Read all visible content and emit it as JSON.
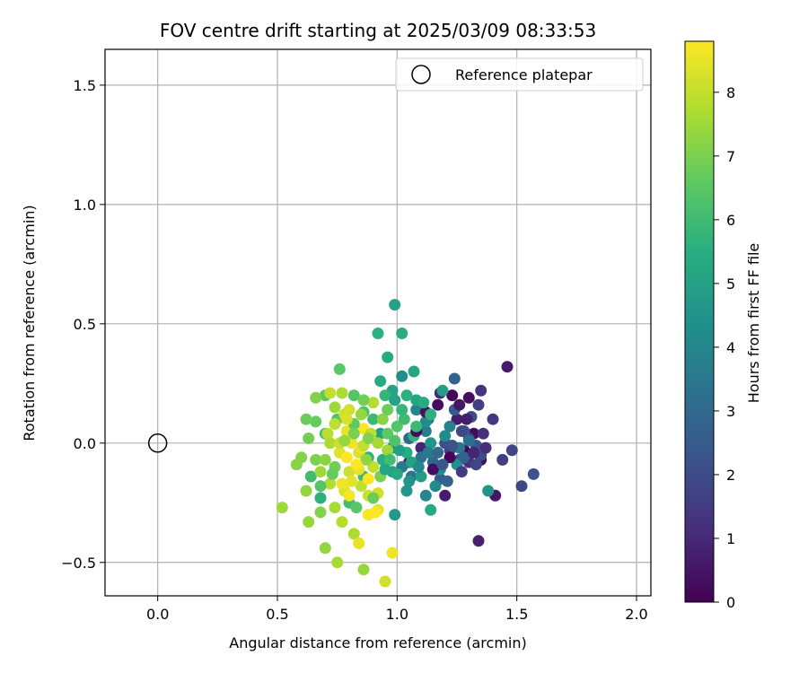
{
  "chart_data": {
    "type": "scatter",
    "title": "FOV centre drift starting at 2025/03/09 08:33:53",
    "xlabel": "Angular distance from reference (arcmin)",
    "ylabel": "Rotation from reference (arcmin)",
    "xlim": [
      -0.22,
      2.06
    ],
    "ylim": [
      -0.64,
      1.65
    ],
    "xticks": [
      0.0,
      0.5,
      1.0,
      1.5,
      2.0
    ],
    "xtick_labels": [
      "0.0",
      "0.5",
      "1.0",
      "1.5",
      "2.0"
    ],
    "yticks": [
      -0.5,
      0.0,
      0.5,
      1.0,
      1.5
    ],
    "ytick_labels": [
      "−0.5",
      "0.0",
      "0.5",
      "1.0",
      "1.5"
    ],
    "grid": true,
    "legend": {
      "placement": "top-right",
      "entries": [
        "Reference platepar"
      ]
    },
    "reference_point": {
      "x": 0.0,
      "y": 0.0
    },
    "colorbar": {
      "label": "Hours from first FF file",
      "range": [
        0,
        8.8
      ],
      "ticks": [
        0,
        1,
        2,
        3,
        4,
        5,
        6,
        7,
        8
      ],
      "tick_labels": [
        "0",
        "1",
        "2",
        "3",
        "4",
        "5",
        "6",
        "7",
        "8"
      ],
      "colormap": "viridis"
    },
    "series": [
      {
        "points": [
          [
            1.46,
            0.32,
            0.6
          ],
          [
            1.34,
            -0.41,
            0.8
          ],
          [
            1.41,
            -0.22,
            0.5
          ],
          [
            1.2,
            -0.22,
            0.7
          ],
          [
            1.35,
            -0.07,
            0.4
          ],
          [
            1.3,
            0.19,
            0.3
          ],
          [
            1.23,
            0.2,
            0.2
          ],
          [
            1.17,
            0.16,
            0.3
          ],
          [
            1.28,
            -0.03,
            0.1
          ],
          [
            1.32,
            0.04,
            0.2
          ],
          [
            1.05,
            -0.08,
            0.6
          ],
          [
            1.1,
            -0.02,
            0.9
          ],
          [
            1.18,
            0.21,
            1.0
          ],
          [
            1.25,
            0.1,
            0.7
          ],
          [
            1.3,
            -0.08,
            1.2
          ],
          [
            1.4,
            0.1,
            1.4
          ],
          [
            1.44,
            -0.07,
            1.6
          ],
          [
            1.48,
            -0.03,
            1.8
          ],
          [
            1.52,
            -0.18,
            1.9
          ],
          [
            1.57,
            -0.13,
            2.2
          ],
          [
            1.35,
            0.22,
            1.3
          ],
          [
            1.34,
            0.16,
            1.7
          ],
          [
            1.3,
            0.02,
            1.5
          ],
          [
            1.22,
            -0.03,
            1.6
          ],
          [
            1.26,
            -0.07,
            1.9
          ],
          [
            1.35,
            -0.05,
            2.0
          ],
          [
            1.33,
            -0.01,
            2.3
          ],
          [
            1.28,
            0.05,
            2.4
          ],
          [
            1.2,
            0.0,
            2.1
          ],
          [
            1.18,
            -0.15,
            2.6
          ],
          [
            1.15,
            -0.08,
            2.9
          ],
          [
            1.24,
            0.27,
            2.8
          ],
          [
            1.13,
            0.1,
            3.1
          ],
          [
            1.05,
            0.02,
            3.0
          ],
          [
            1.1,
            -0.06,
            3.3
          ],
          [
            1.02,
            -0.1,
            3.6
          ],
          [
            0.98,
            -0.02,
            3.8
          ],
          [
            1.06,
            -0.14,
            3.4
          ],
          [
            1.12,
            0.05,
            3.7
          ],
          [
            1.08,
            0.14,
            3.9
          ],
          [
            1.16,
            -0.18,
            4.1
          ],
          [
            1.2,
            0.03,
            4.2
          ],
          [
            1.25,
            -0.09,
            4.4
          ],
          [
            1.02,
            0.28,
            4.3
          ],
          [
            1.12,
            -0.22,
            4.0
          ],
          [
            1.04,
            -0.2,
            4.6
          ],
          [
            0.98,
            -0.12,
            4.8
          ],
          [
            0.93,
            0.04,
            4.9
          ],
          [
            1.14,
            -0.28,
            5.3
          ],
          [
            0.99,
            -0.3,
            4.7
          ],
          [
            1.38,
            -0.2,
            4.5
          ],
          [
            1.19,
            0.22,
            4.9
          ],
          [
            1.08,
            0.18,
            5.1
          ],
          [
            0.98,
            0.22,
            5.0
          ],
          [
            1.07,
            0.3,
            5.2
          ],
          [
            0.96,
            0.36,
            5.4
          ],
          [
            1.02,
            0.46,
            5.5
          ],
          [
            0.92,
            0.46,
            5.6
          ],
          [
            0.99,
            0.58,
            5.0
          ],
          [
            0.95,
            0.2,
            5.8
          ],
          [
            0.9,
            0.1,
            5.9
          ],
          [
            0.88,
            -0.06,
            5.7
          ],
          [
            0.94,
            -0.07,
            5.5
          ],
          [
            0.86,
            -0.14,
            5.9
          ],
          [
            0.8,
            -0.25,
            6.1
          ],
          [
            0.68,
            -0.23,
            5.6
          ],
          [
            0.64,
            -0.14,
            6.0
          ],
          [
            0.7,
            0.04,
            6.2
          ],
          [
            0.75,
            0.1,
            6.3
          ],
          [
            0.82,
            0.2,
            6.4
          ],
          [
            0.76,
            0.31,
            6.5
          ],
          [
            0.7,
            0.2,
            6.6
          ],
          [
            0.66,
            0.09,
            6.7
          ],
          [
            0.62,
            0.1,
            6.8
          ],
          [
            0.63,
            0.02,
            6.9
          ],
          [
            0.66,
            -0.07,
            7.0
          ],
          [
            0.6,
            -0.06,
            7.1
          ],
          [
            0.58,
            -0.09,
            7.2
          ],
          [
            0.62,
            -0.2,
            7.3
          ],
          [
            0.63,
            -0.33,
            7.4
          ],
          [
            0.52,
            -0.27,
            7.5
          ],
          [
            0.68,
            -0.29,
            7.1
          ],
          [
            0.7,
            -0.44,
            7.3
          ],
          [
            0.75,
            -0.5,
            7.6
          ],
          [
            0.82,
            -0.38,
            7.7
          ],
          [
            0.86,
            -0.53,
            7.4
          ],
          [
            0.77,
            -0.33,
            7.8
          ],
          [
            0.84,
            -0.42,
            8.5
          ],
          [
            0.95,
            -0.58,
            8.2
          ],
          [
            0.98,
            -0.46,
            8.6
          ],
          [
            0.92,
            -0.28,
            8.4
          ],
          [
            0.88,
            -0.22,
            8.1
          ],
          [
            0.9,
            -0.1,
            8.0
          ],
          [
            0.84,
            -0.04,
            8.3
          ],
          [
            0.79,
            0.05,
            8.5
          ],
          [
            0.78,
            0.12,
            8.2
          ],
          [
            0.74,
            0.08,
            7.9
          ],
          [
            0.77,
            0.21,
            7.7
          ],
          [
            0.72,
            0.21,
            8.0
          ],
          [
            0.81,
            0.0,
            8.6
          ],
          [
            0.86,
            0.06,
            8.7
          ],
          [
            0.76,
            -0.04,
            8.4
          ],
          [
            0.8,
            -0.12,
            8.1
          ],
          [
            0.72,
            -0.17,
            7.8
          ],
          [
            0.74,
            -0.27,
            7.6
          ],
          [
            0.78,
            -0.2,
            8.3
          ],
          [
            0.85,
            -0.18,
            8.0
          ],
          [
            0.88,
            -0.3,
            8.7
          ],
          [
            0.91,
            -0.29,
            8.8
          ],
          [
            0.92,
            -0.21,
            8.2
          ],
          [
            0.84,
            -0.11,
            8.5
          ],
          [
            0.79,
            -0.06,
            8.8
          ],
          [
            0.85,
            -0.02,
            8.6
          ],
          [
            0.89,
            0.04,
            7.9
          ],
          [
            0.96,
            -0.03,
            7.5
          ],
          [
            0.94,
            0.1,
            7.2
          ],
          [
            0.9,
            0.17,
            7.8
          ],
          [
            0.96,
            0.14,
            6.8
          ],
          [
            1.0,
            0.07,
            6.4
          ],
          [
            1.03,
            0.1,
            6.0
          ],
          [
            1.07,
            0.03,
            5.7
          ],
          [
            1.04,
            -0.04,
            5.4
          ],
          [
            1.0,
            -0.13,
            5.3
          ],
          [
            1.06,
            -0.08,
            5.0
          ],
          [
            1.1,
            -0.14,
            4.8
          ],
          [
            1.14,
            0.0,
            4.5
          ],
          [
            1.18,
            -0.11,
            4.3
          ],
          [
            1.12,
            0.09,
            4.2
          ],
          [
            1.22,
            0.07,
            3.8
          ],
          [
            1.26,
            -0.02,
            3.4
          ],
          [
            1.3,
            0.01,
            3.2
          ],
          [
            1.28,
            -0.06,
            2.7
          ],
          [
            1.24,
            0.14,
            2.5
          ],
          [
            1.31,
            0.11,
            2.0
          ],
          [
            1.33,
            -0.09,
            1.8
          ],
          [
            1.27,
            -0.12,
            1.5
          ],
          [
            1.36,
            0.04,
            1.2
          ],
          [
            1.37,
            -0.02,
            1.1
          ],
          [
            1.32,
            -0.04,
            0.9
          ],
          [
            1.29,
            0.1,
            0.7
          ],
          [
            1.26,
            0.16,
            0.5
          ],
          [
            1.12,
            0.13,
            0.4
          ],
          [
            1.08,
            0.05,
            0.2
          ],
          [
            1.15,
            -0.11,
            0.3
          ],
          [
            1.22,
            -0.06,
            0.1
          ],
          [
            0.99,
            0.18,
            5.1
          ],
          [
            0.93,
            0.26,
            5.3
          ],
          [
            0.86,
            0.13,
            6.2
          ],
          [
            0.82,
            0.08,
            6.6
          ],
          [
            0.74,
            -0.1,
            6.9
          ],
          [
            0.7,
            -0.07,
            7.2
          ],
          [
            0.68,
            -0.12,
            7.5
          ],
          [
            0.72,
            0.0,
            7.7
          ],
          [
            0.76,
            0.0,
            8.1
          ],
          [
            0.8,
            -0.22,
            8.7
          ],
          [
            0.88,
            -0.15,
            8.8
          ],
          [
            0.83,
            -0.27,
            6.5
          ],
          [
            0.9,
            -0.23,
            6.8
          ],
          [
            0.93,
            -0.14,
            7.0
          ],
          [
            0.97,
            -0.07,
            6.1
          ],
          [
            0.95,
            -0.11,
            5.2
          ],
          [
            1.01,
            -0.03,
            4.9
          ],
          [
            1.05,
            -0.16,
            4.5
          ],
          [
            1.09,
            -0.1,
            4.1
          ],
          [
            1.13,
            -0.04,
            3.6
          ],
          [
            1.17,
            -0.04,
            3.0
          ],
          [
            1.21,
            -0.16,
            2.8
          ],
          [
            1.19,
            -0.09,
            2.4
          ],
          [
            1.23,
            -0.01,
            2.2
          ],
          [
            1.27,
            0.05,
            1.9
          ],
          [
            0.66,
            0.19,
            7.1
          ],
          [
            0.68,
            -0.18,
            6.4
          ],
          [
            0.73,
            -0.13,
            6.7
          ],
          [
            0.86,
            0.18,
            6.9
          ],
          [
            0.78,
            0.01,
            7.4
          ],
          [
            0.82,
            0.04,
            7.0
          ],
          [
            0.87,
            -0.07,
            7.3
          ],
          [
            0.92,
            0.0,
            7.6
          ],
          [
            0.96,
            0.04,
            6.6
          ],
          [
            0.99,
            0.01,
            6.3
          ],
          [
            1.02,
            0.14,
            5.8
          ],
          [
            1.04,
            0.2,
            5.6
          ],
          [
            1.08,
            0.07,
            5.9
          ],
          [
            1.11,
            0.17,
            5.4
          ],
          [
            1.14,
            0.12,
            5.6
          ],
          [
            0.8,
            0.14,
            8.2
          ],
          [
            0.81,
            -0.16,
            8.4
          ],
          [
            0.77,
            -0.17,
            8.6
          ],
          [
            0.83,
            -0.09,
            8.9
          ],
          [
            0.86,
            -0.01,
            8.0
          ],
          [
            0.74,
            0.15,
            7.5
          ],
          [
            0.71,
            0.04,
            7.9
          ],
          [
            0.79,
            0.1,
            8.3
          ],
          [
            0.85,
            0.12,
            7.4
          ],
          [
            0.88,
            0.02,
            7.1
          ]
        ]
      }
    ]
  }
}
